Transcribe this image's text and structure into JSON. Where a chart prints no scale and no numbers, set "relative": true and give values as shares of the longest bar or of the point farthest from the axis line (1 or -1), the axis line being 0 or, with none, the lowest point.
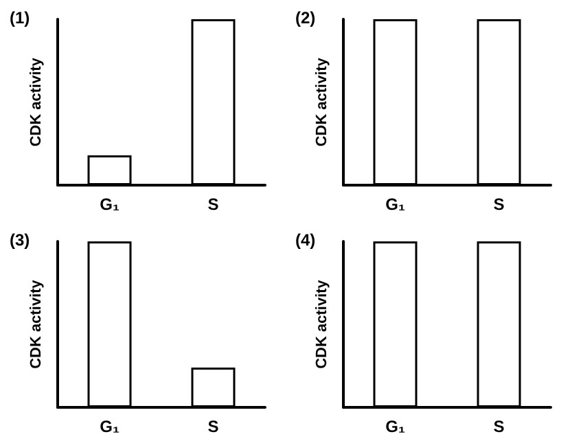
{
  "chart_data": [
    {
      "type": "bar",
      "title": "(1)",
      "ylabel": "CDK activity",
      "categories": [
        "G₁",
        "S"
      ],
      "values": [
        0.18,
        1
      ],
      "color": "#ffffff",
      "relative": true
    },
    {
      "type": "bar",
      "title": "(2)",
      "ylabel": "CDK activity",
      "categories": [
        "G₁",
        "S"
      ],
      "values": [
        1,
        1
      ],
      "color": "#ffffff",
      "relative": true
    },
    {
      "type": "bar",
      "title": "(3)",
      "ylabel": "CDK activity",
      "categories": [
        "G₁",
        "S"
      ],
      "values": [
        1,
        0.24
      ],
      "color": "#ffffff",
      "relative": true
    },
    {
      "type": "bar",
      "title": "(4)",
      "ylabel": "CDK activity",
      "categories": [
        "G₁",
        "S"
      ],
      "values": [
        1,
        1
      ],
      "color": "#ffffff",
      "relative": true
    }
  ]
}
